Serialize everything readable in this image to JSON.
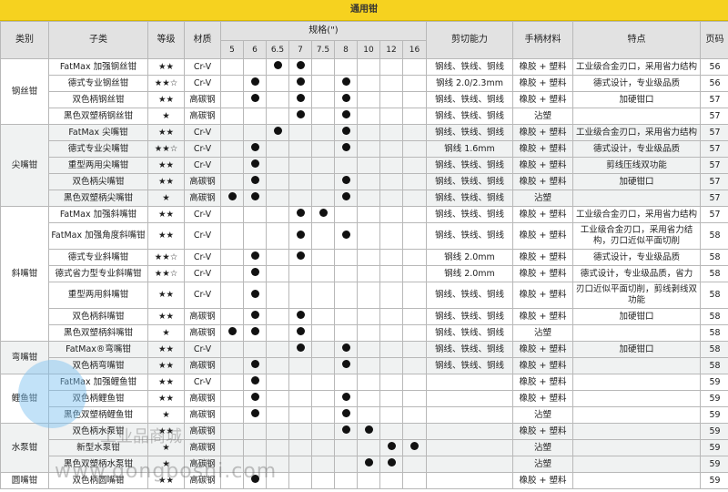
{
  "title": "通用钳",
  "headers": {
    "category": "类别",
    "subcategory": "子类",
    "grade": "等级",
    "material": "材质",
    "spec": "规格(\")",
    "sizes": [
      "5",
      "6",
      "6.5",
      "7",
      "7.5",
      "8",
      "10",
      "12",
      "16"
    ],
    "cutting": "剪切能力",
    "handle": "手柄材料",
    "feature": "特点",
    "page": "页码"
  },
  "groups": [
    {
      "category": "钢丝钳",
      "shaded": false,
      "rows": [
        {
          "name": "FatMax 加强钢丝钳",
          "grade": "★★",
          "material": "Cr-V",
          "sizes": [
            "6.5",
            "7"
          ],
          "cutting": "钢线、铁线、铜线",
          "handle": "橡胶 + 塑料",
          "feature": "工业级合金刃口，采用省力结构",
          "page": "56"
        },
        {
          "name": "德式专业钢丝钳",
          "grade": "★★☆",
          "material": "Cr-V",
          "sizes": [
            "6",
            "7",
            "8"
          ],
          "cutting": "钢线 2.0/2.3mm",
          "handle": "橡胶 + 塑料",
          "feature": "德式设计，专业级品质",
          "page": "56"
        },
        {
          "name": "双色柄钢丝钳",
          "grade": "★★",
          "material": "高碳钢",
          "sizes": [
            "6",
            "7",
            "8"
          ],
          "cutting": "钢线、铁线、铜线",
          "handle": "橡胶 + 塑料",
          "feature": "加硬钳口",
          "page": "57"
        },
        {
          "name": "黑色双塑柄钢丝钳",
          "grade": "★",
          "material": "高碳钢",
          "sizes": [
            "7",
            "8"
          ],
          "cutting": "钢线、铁线、铜线",
          "handle": "沾塑",
          "feature": "",
          "page": "57"
        }
      ]
    },
    {
      "category": "尖嘴钳",
      "shaded": true,
      "rows": [
        {
          "name": "FatMax 尖嘴钳",
          "grade": "★★",
          "material": "Cr-V",
          "sizes": [
            "6.5",
            "8"
          ],
          "cutting": "钢线、铁线、铜线",
          "handle": "橡胶 + 塑料",
          "feature": "工业级合金刃口，采用省力结构",
          "page": "57"
        },
        {
          "name": "德式专业尖嘴钳",
          "grade": "★★☆",
          "material": "Cr-V",
          "sizes": [
            "6",
            "8"
          ],
          "cutting": "钢线 1.6mm",
          "handle": "橡胶 + 塑料",
          "feature": "德式设计，专业级品质",
          "page": "57"
        },
        {
          "name": "重型两用尖嘴钳",
          "grade": "★★",
          "material": "Cr-V",
          "sizes": [
            "6"
          ],
          "cutting": "钢线、铁线、铜线",
          "handle": "橡胶 + 塑料",
          "feature": "剪线压线双功能",
          "page": "57"
        },
        {
          "name": "双色柄尖嘴钳",
          "grade": "★★",
          "material": "高碳钢",
          "sizes": [
            "6",
            "8"
          ],
          "cutting": "钢线、铁线、铜线",
          "handle": "橡胶 + 塑料",
          "feature": "加硬钳口",
          "page": "57"
        },
        {
          "name": "黑色双塑柄尖嘴钳",
          "grade": "★",
          "material": "高碳钢",
          "sizes": [
            "5",
            "6",
            "8"
          ],
          "cutting": "钢线、铁线、铜线",
          "handle": "沾塑",
          "feature": "",
          "page": "57"
        }
      ]
    },
    {
      "category": "斜嘴钳",
      "shaded": false,
      "rows": [
        {
          "name": "FatMax 加强斜嘴钳",
          "grade": "★★",
          "material": "Cr-V",
          "sizes": [
            "7",
            "7.5"
          ],
          "cutting": "钢线、铁线、铜线",
          "handle": "橡胶 + 塑料",
          "feature": "工业级合金刃口，采用省力结构",
          "page": "57"
        },
        {
          "name": "FatMax 加强角度斜嘴钳",
          "grade": "★★",
          "material": "Cr-V",
          "sizes": [
            "7",
            "8"
          ],
          "cutting": "钢线、铁线、铜线",
          "handle": "橡胶 + 塑料",
          "feature": "工业级合金刃口，采用省力结构，刃口近似平面切削",
          "page": "58"
        },
        {
          "name": "德式专业斜嘴钳",
          "grade": "★★☆",
          "material": "Cr-V",
          "sizes": [
            "6",
            "7"
          ],
          "cutting": "钢线 2.0mm",
          "handle": "橡胶 + 塑料",
          "feature": "德式设计，专业级品质",
          "page": "58"
        },
        {
          "name": "德式省力型专业斜嘴钳",
          "grade": "★★☆",
          "material": "Cr-V",
          "sizes": [
            "6"
          ],
          "cutting": "钢线 2.0mm",
          "handle": "橡胶 + 塑料",
          "feature": "德式设计，专业级品质，省力",
          "page": "58"
        },
        {
          "name": "重型两用斜嘴钳",
          "grade": "★★",
          "material": "Cr-V",
          "sizes": [
            "6"
          ],
          "cutting": "钢线、铁线、铜线",
          "handle": "橡胶 + 塑料",
          "feature": "刃口近似平面切削，剪线剥线双功能",
          "page": "58"
        },
        {
          "name": "双色柄斜嘴钳",
          "grade": "★★",
          "material": "高碳钢",
          "sizes": [
            "6",
            "7"
          ],
          "cutting": "钢线、铁线、铜线",
          "handle": "橡胶 + 塑料",
          "feature": "加硬钳口",
          "page": "58"
        },
        {
          "name": "黑色双塑柄斜嘴钳",
          "grade": "★",
          "material": "高碳钢",
          "sizes": [
            "5",
            "6",
            "7"
          ],
          "cutting": "钢线、铁线、铜线",
          "handle": "沾塑",
          "feature": "",
          "page": "58"
        }
      ]
    },
    {
      "category": "弯嘴钳",
      "shaded": true,
      "rows": [
        {
          "name": "FatMax®弯嘴钳",
          "grade": "★★",
          "material": "Cr-V",
          "sizes": [
            "7",
            "8"
          ],
          "cutting": "钢线、铁线、铜线",
          "handle": "橡胶 + 塑料",
          "feature": "加硬钳口",
          "page": "58"
        },
        {
          "name": "双色柄弯嘴钳",
          "grade": "★★",
          "material": "高碳钢",
          "sizes": [
            "6",
            "8"
          ],
          "cutting": "钢线、铁线、铜线",
          "handle": "橡胶 + 塑料",
          "feature": "",
          "page": "58"
        }
      ]
    },
    {
      "category": "鲤鱼钳",
      "shaded": false,
      "rows": [
        {
          "name": "FatMax 加强鲤鱼钳",
          "grade": "★★",
          "material": "Cr-V",
          "sizes": [
            "6"
          ],
          "cutting": "",
          "handle": "橡胶 + 塑料",
          "feature": "",
          "page": "59"
        },
        {
          "name": "双色柄鲤鱼钳",
          "grade": "★★",
          "material": "高碳钢",
          "sizes": [
            "6",
            "8"
          ],
          "cutting": "",
          "handle": "橡胶 + 塑料",
          "feature": "",
          "page": "59"
        },
        {
          "name": "黑色双塑柄鲤鱼钳",
          "grade": "★",
          "material": "高碳钢",
          "sizes": [
            "6",
            "8"
          ],
          "cutting": "",
          "handle": "沾塑",
          "feature": "",
          "page": "59"
        }
      ]
    },
    {
      "category": "水泵钳",
      "shaded": true,
      "rows": [
        {
          "name": "双色柄水泵钳",
          "grade": "★★",
          "material": "高碳钢",
          "sizes": [
            "8",
            "10"
          ],
          "cutting": "",
          "handle": "橡胶 + 塑料",
          "feature": "",
          "page": "59"
        },
        {
          "name": "新型水泵钳",
          "grade": "★",
          "material": "高碳钢",
          "sizes": [
            "12",
            "16"
          ],
          "cutting": "",
          "handle": "沾塑",
          "feature": "",
          "page": "59"
        },
        {
          "name": "黑色双塑柄水泵钳",
          "grade": "★",
          "material": "高碳钢",
          "sizes": [
            "10",
            "12"
          ],
          "cutting": "",
          "handle": "沾塑",
          "feature": "",
          "page": "59"
        }
      ]
    },
    {
      "category": "圆嘴钳",
      "shaded": false,
      "rows": [
        {
          "name": "双色柄圆嘴钳",
          "grade": "★★",
          "material": "高碳钢",
          "sizes": [
            "6"
          ],
          "cutting": "",
          "handle": "橡胶 + 塑料",
          "feature": "",
          "page": "59"
        }
      ]
    }
  ],
  "watermark": {
    "brand": "工业品商城",
    "url": "www.gongboshi.com"
  },
  "colors": {
    "title_bar": "#f6d21f",
    "header_bg": "#e2e2e2",
    "shaded_group": "#f0f2f2"
  }
}
